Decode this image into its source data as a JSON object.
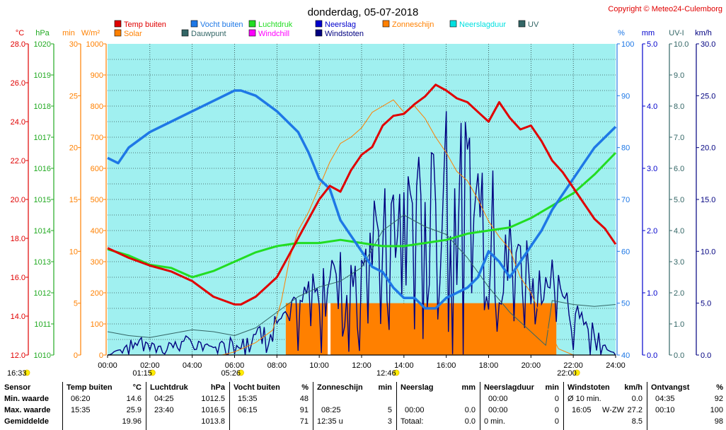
{
  "header": {
    "title": "donderdag, 05-07-2018",
    "copyright": "Copyright © Meteo24-Culemborg"
  },
  "colors": {
    "temp": "#e00000",
    "vocht": "#1e78e6",
    "luchtdruk": "#22dd22",
    "neerslag": "#0000cc",
    "windstoten": "#000080",
    "zonneschijn": "#ff8000",
    "solar": "#ff8000",
    "dauwpunt": "#336666",
    "windchill": "#ff00ff",
    "neerslagduur": "#00e0e0",
    "uv": "#336666",
    "plotbg": "#a0f0f0"
  },
  "legend": [
    {
      "label": "Temp buiten",
      "color": "#e00000"
    },
    {
      "label": "Vocht buiten",
      "color": "#1e78e6"
    },
    {
      "label": "Luchtdruk",
      "color": "#22dd22"
    },
    {
      "label": "Neerslag",
      "color": "#0000cc"
    },
    {
      "label": "Zonneschijn",
      "color": "#ff8000"
    },
    {
      "label": "Neerslagduur",
      "color": "#00e0e0"
    },
    {
      "label": "UV",
      "color": "#336666"
    },
    {
      "label": "Solar",
      "color": "#ff8000"
    },
    {
      "label": "Dauwpunt",
      "color": "#336666"
    },
    {
      "label": "Windchill",
      "color": "#ff00ff"
    },
    {
      "label": "Windstoten",
      "color": "#000080"
    }
  ],
  "axis_units": {
    "temp": "°C",
    "hpa": "hPa",
    "min": "min",
    "wm2": "W/m²",
    "pct": "%",
    "mm": "mm",
    "uvi": "UV-I",
    "kmh": "km/h"
  },
  "axes": {
    "temp": [
      "28.0",
      "26.0",
      "24.0",
      "22.0",
      "20.0",
      "18.0",
      "16.0",
      "14.0",
      "12.0"
    ],
    "hpa": [
      "1020",
      "1019",
      "1018",
      "1017",
      "1016",
      "1015",
      "1014",
      "1013",
      "1012",
      "1011",
      "1010"
    ],
    "min": [
      "30",
      "25",
      "20",
      "15",
      "10",
      "5",
      "0"
    ],
    "wm2": [
      "1000",
      "900",
      "800",
      "700",
      "600",
      "500",
      "400",
      "300",
      "200",
      "100",
      "0"
    ],
    "pct": [
      "100",
      "90",
      "80",
      "70",
      "60",
      "50",
      "40"
    ],
    "mm": [
      "5.0",
      "4.0",
      "3.0",
      "2.0",
      "1.0",
      "0.0"
    ],
    "uvi": [
      "10.0",
      "9.0",
      "8.0",
      "7.0",
      "6.0",
      "5.0",
      "4.0",
      "3.0",
      "2.0",
      "1.0",
      "0.0"
    ],
    "kmh": [
      "30.0",
      "25.0",
      "20.0",
      "15.0",
      "10.0",
      "5.0",
      "0.0"
    ]
  },
  "x_ticks": [
    "00:00",
    "02:00",
    "04:00",
    "06:00",
    "08:00",
    "10:00",
    "12:00",
    "14:00",
    "16:00",
    "18:00",
    "20:00",
    "22:00",
    "24:00"
  ],
  "sun_markers": [
    {
      "label": "16:33",
      "hour": -4.7
    },
    {
      "label": "01:15",
      "hour": 1.25
    },
    {
      "label": "05:26",
      "hour": 5.43
    },
    {
      "label": "12:46",
      "hour": 12.77
    },
    {
      "label": "22:00",
      "hour": 21.3
    }
  ],
  "chart_data": {
    "type": "line",
    "title": "donderdag, 05-07-2018",
    "xlabel": "",
    "ylabel": "",
    "x_range_hours": [
      0,
      24
    ],
    "series": [
      {
        "name": "Temp buiten",
        "unit": "°C",
        "ylim": [
          12,
          28
        ],
        "points": [
          [
            0,
            17.5
          ],
          [
            1,
            17.0
          ],
          [
            2,
            16.6
          ],
          [
            3,
            16.3
          ],
          [
            4,
            15.8
          ],
          [
            5,
            15.0
          ],
          [
            6,
            14.6
          ],
          [
            6.3,
            14.6
          ],
          [
            7,
            15.0
          ],
          [
            8,
            16.0
          ],
          [
            9,
            18.0
          ],
          [
            10,
            20.0
          ],
          [
            10.5,
            20.7
          ],
          [
            11,
            20.4
          ],
          [
            11.5,
            21.5
          ],
          [
            12,
            22.3
          ],
          [
            12.5,
            22.7
          ],
          [
            13,
            23.8
          ],
          [
            13.5,
            24.3
          ],
          [
            14,
            24.4
          ],
          [
            14.5,
            24.9
          ],
          [
            15,
            25.3
          ],
          [
            15.5,
            25.9
          ],
          [
            16,
            25.6
          ],
          [
            16.5,
            25.2
          ],
          [
            17,
            25.0
          ],
          [
            17.5,
            24.5
          ],
          [
            18,
            24.0
          ],
          [
            18.5,
            25.0
          ],
          [
            19,
            24.2
          ],
          [
            19.5,
            23.6
          ],
          [
            20,
            23.8
          ],
          [
            20.5,
            23.0
          ],
          [
            21,
            22.0
          ],
          [
            21.5,
            21.4
          ],
          [
            22,
            20.6
          ],
          [
            22.5,
            19.8
          ],
          [
            23,
            19.0
          ],
          [
            23.5,
            18.5
          ],
          [
            24,
            17.7
          ]
        ]
      },
      {
        "name": "Vocht buiten",
        "unit": "%",
        "ylim": [
          40,
          100
        ],
        "points": [
          [
            0,
            78
          ],
          [
            0.5,
            77
          ],
          [
            1,
            80
          ],
          [
            2,
            83
          ],
          [
            3,
            85
          ],
          [
            4,
            87
          ],
          [
            5,
            89
          ],
          [
            6,
            91
          ],
          [
            6.3,
            91
          ],
          [
            7,
            90
          ],
          [
            8,
            87
          ],
          [
            9,
            83
          ],
          [
            9.5,
            79
          ],
          [
            10,
            74
          ],
          [
            10.5,
            72
          ],
          [
            11,
            66
          ],
          [
            11.5,
            63
          ],
          [
            12,
            60
          ],
          [
            12.5,
            57
          ],
          [
            13,
            56
          ],
          [
            13.5,
            53
          ],
          [
            14,
            51
          ],
          [
            14.5,
            51
          ],
          [
            15,
            49
          ],
          [
            15.5,
            49
          ],
          [
            16,
            51
          ],
          [
            16.5,
            52
          ],
          [
            17,
            53
          ],
          [
            17.5,
            55
          ],
          [
            18,
            60
          ],
          [
            18.5,
            58
          ],
          [
            19,
            55
          ],
          [
            19.5,
            58
          ],
          [
            20,
            61
          ],
          [
            20.5,
            64
          ],
          [
            21,
            68
          ],
          [
            21.5,
            71
          ],
          [
            22,
            74
          ],
          [
            22.5,
            77
          ],
          [
            23,
            80
          ],
          [
            24,
            84
          ]
        ]
      },
      {
        "name": "Luchtdruk",
        "unit": "hPa",
        "ylim": [
          1010,
          1020
        ],
        "points": [
          [
            0,
            1013.4
          ],
          [
            1,
            1013.2
          ],
          [
            2,
            1012.9
          ],
          [
            3,
            1012.8
          ],
          [
            4,
            1012.5
          ],
          [
            5,
            1012.7
          ],
          [
            6,
            1013.0
          ],
          [
            7,
            1013.3
          ],
          [
            8,
            1013.5
          ],
          [
            9,
            1013.6
          ],
          [
            10,
            1013.6
          ],
          [
            11,
            1013.7
          ],
          [
            12,
            1013.6
          ],
          [
            13,
            1013.5
          ],
          [
            14,
            1013.5
          ],
          [
            15,
            1013.6
          ],
          [
            16,
            1013.7
          ],
          [
            17,
            1013.9
          ],
          [
            18,
            1014.0
          ],
          [
            19,
            1014.1
          ],
          [
            20,
            1014.4
          ],
          [
            21,
            1014.8
          ],
          [
            22,
            1015.2
          ],
          [
            23,
            1015.8
          ],
          [
            24,
            1016.5
          ]
        ]
      },
      {
        "name": "Dauwpunt",
        "unit": "°C",
        "ylim": [
          12,
          28
        ],
        "points": [
          [
            0,
            13.2
          ],
          [
            1,
            13.0
          ],
          [
            2,
            12.9
          ],
          [
            3,
            13.1
          ],
          [
            4,
            13.3
          ],
          [
            5,
            13.2
          ],
          [
            6,
            13.0
          ],
          [
            7,
            13.4
          ],
          [
            8,
            14.2
          ],
          [
            9,
            15.0
          ],
          [
            10,
            15.5
          ],
          [
            11,
            15.8
          ],
          [
            12,
            16.5
          ],
          [
            13,
            18.4
          ],
          [
            14,
            19.2
          ],
          [
            15,
            18.6
          ],
          [
            16,
            18.2
          ],
          [
            17,
            17.0
          ],
          [
            18,
            15.5
          ],
          [
            19,
            14.2
          ],
          [
            20,
            13.2
          ],
          [
            20.7,
            12.5
          ],
          [
            21,
            14.8
          ],
          [
            22,
            14.6
          ],
          [
            23,
            14.5
          ],
          [
            24,
            14.6
          ]
        ]
      },
      {
        "name": "Solar",
        "unit": "W/m²",
        "ylim": [
          0,
          1000
        ],
        "points": [
          [
            0,
            0
          ],
          [
            5.4,
            0
          ],
          [
            6,
            10
          ],
          [
            7,
            40
          ],
          [
            7.8,
            80
          ],
          [
            8.2,
            170
          ],
          [
            8.6,
            310
          ],
          [
            9,
            400
          ],
          [
            9.5,
            460
          ],
          [
            10,
            540
          ],
          [
            10.5,
            620
          ],
          [
            11,
            680
          ],
          [
            11.5,
            700
          ],
          [
            12,
            730
          ],
          [
            12.5,
            780
          ],
          [
            13,
            800
          ],
          [
            13.5,
            820
          ],
          [
            14,
            780
          ],
          [
            14.5,
            800
          ],
          [
            15,
            760
          ],
          [
            15.5,
            700
          ],
          [
            16,
            650
          ],
          [
            16.5,
            590
          ],
          [
            17,
            560
          ],
          [
            17.5,
            500
          ],
          [
            18,
            430
          ],
          [
            18.5,
            380
          ],
          [
            19,
            340
          ],
          [
            19.5,
            250
          ],
          [
            20,
            200
          ],
          [
            20.5,
            120
          ],
          [
            21,
            60
          ],
          [
            21.3,
            20
          ],
          [
            22,
            0
          ],
          [
            24,
            0
          ]
        ]
      },
      {
        "name": "Zonneschijn",
        "unit": "min",
        "ylim": [
          0,
          30
        ],
        "points": [
          [
            8.42,
            5
          ],
          [
            21.2,
            5
          ]
        ]
      },
      {
        "name": "Windstoten",
        "unit": "km/h",
        "ylim": [
          0,
          30
        ],
        "points": [
          [
            0,
            0
          ],
          [
            1.5,
            2
          ],
          [
            2.5,
            1
          ],
          [
            3.5,
            2
          ],
          [
            5,
            1
          ],
          [
            6,
            2
          ],
          [
            7,
            3
          ],
          [
            8,
            4
          ],
          [
            9,
            6
          ],
          [
            10,
            10
          ],
          [
            11,
            12
          ],
          [
            12,
            14
          ],
          [
            13,
            16
          ],
          [
            14,
            19
          ],
          [
            15,
            20
          ],
          [
            16,
            27.2
          ],
          [
            17,
            22
          ],
          [
            18,
            19
          ],
          [
            19,
            15
          ],
          [
            20,
            12
          ],
          [
            21,
            10
          ],
          [
            22,
            6
          ],
          [
            23,
            3
          ],
          [
            24,
            0
          ]
        ]
      }
    ]
  },
  "stats": {
    "headers": {
      "sensor": "Sensor",
      "temp": "Temp buiten",
      "temp_unit": "°C",
      "druk": "Luchtdruk",
      "druk_unit": "hPa",
      "vocht": "Vocht buiten",
      "vocht_unit": "%",
      "zon": "Zonneschijn",
      "zon_unit": "min",
      "neerslag": "Neerslag",
      "neerslag_unit": "mm",
      "nduur": "Neerslagduur",
      "nduur_unit": "min",
      "wind": "Windstoten",
      "wind_unit": "km/h",
      "ontv": "Ontvangst",
      "ontv_unit": "%"
    },
    "rows": [
      {
        "label": "Min. waarde",
        "temp_t": "06:20",
        "temp_v": "14.6",
        "druk_t": "04:25",
        "druk_v": "1012.5",
        "vocht_t": "15:35",
        "vocht_v": "48",
        "zon_t": "",
        "zon_v": "",
        "neer_t": "",
        "neer_v": "",
        "nduur_t": "00:00",
        "nduur_v": "0",
        "wind_t": "Ø 10 min.",
        "wind_d": "",
        "wind_v": "0.0",
        "ontv_t": "04:35",
        "ontv_v": "92"
      },
      {
        "label": "Max. waarde",
        "temp_t": "15:35",
        "temp_v": "25.9",
        "druk_t": "23:40",
        "druk_v": "1016.5",
        "vocht_t": "06:15",
        "vocht_v": "91",
        "zon_t": "08:25",
        "zon_v": "5",
        "neer_t": "00:00",
        "neer_v": "0.0",
        "nduur_t": "00:00",
        "nduur_v": "0",
        "wind_t": "16:05",
        "wind_d": "W-ZW",
        "wind_v": "27.2",
        "ontv_t": "00:10",
        "ontv_v": "100"
      },
      {
        "label": "Gemiddelde",
        "temp_t": "",
        "temp_v": "19.96",
        "druk_t": "",
        "druk_v": "1013.8",
        "vocht_t": "",
        "vocht_v": "71",
        "zon_t": "12:35 u",
        "zon_v": "3",
        "neer_t": "Totaal:",
        "neer_v": "0.0",
        "nduur_t": "0 min.",
        "nduur_v": "0",
        "wind_t": "",
        "wind_d": "",
        "wind_v": "8.5",
        "ontv_t": "",
        "ontv_v": "98"
      }
    ]
  }
}
